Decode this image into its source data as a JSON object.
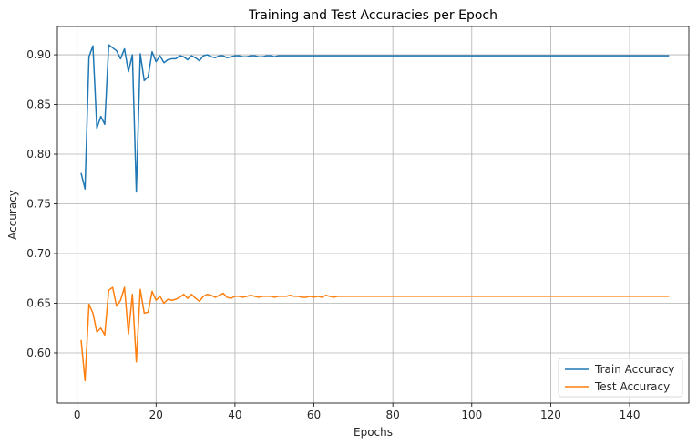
{
  "chart_data": {
    "type": "line",
    "title": "Training and Test Accuracies per Epoch",
    "xlabel": "Epochs",
    "ylabel": "Accuracy",
    "xlim": [
      -5,
      155
    ],
    "ylim": [
      0.5495,
      0.9285
    ],
    "xticks": [
      0,
      20,
      40,
      60,
      80,
      100,
      120,
      140
    ],
    "yticks": [
      0.6,
      0.65,
      0.7,
      0.75,
      0.8,
      0.85,
      0.9
    ],
    "grid": true,
    "legend_position": "lower-right",
    "x_start": 1,
    "x_end": 150,
    "series": [
      {
        "name": "Train Accuracy",
        "color": "#1f77b4",
        "head": [
          0.781,
          0.765,
          0.898,
          0.909,
          0.826,
          0.838,
          0.83,
          0.91,
          0.907,
          0.904,
          0.896,
          0.906,
          0.883,
          0.9,
          0.762,
          0.901,
          0.874,
          0.878,
          0.903,
          0.893,
          0.899,
          0.892,
          0.895,
          0.896,
          0.896,
          0.899,
          0.898,
          0.895,
          0.899,
          0.897,
          0.894,
          0.899,
          0.9,
          0.898,
          0.897,
          0.899,
          0.899,
          0.897,
          0.898,
          0.899,
          0.899,
          0.898,
          0.898,
          0.899,
          0.899,
          0.898,
          0.898,
          0.899,
          0.899,
          0.898
        ],
        "tail_value": 0.899
      },
      {
        "name": "Test Accuracy",
        "color": "#ff7f0e",
        "head": [
          0.613,
          0.572,
          0.649,
          0.64,
          0.621,
          0.625,
          0.618,
          0.663,
          0.666,
          0.647,
          0.653,
          0.666,
          0.619,
          0.659,
          0.591,
          0.664,
          0.64,
          0.641,
          0.662,
          0.653,
          0.657,
          0.65,
          0.654,
          0.653,
          0.654,
          0.656,
          0.659,
          0.655,
          0.659,
          0.655,
          0.652,
          0.657,
          0.659,
          0.658,
          0.656,
          0.658,
          0.66,
          0.656,
          0.655,
          0.657,
          0.657,
          0.656,
          0.657,
          0.658,
          0.657,
          0.656,
          0.657,
          0.657,
          0.657,
          0.656,
          0.657,
          0.657,
          0.657,
          0.658,
          0.657,
          0.657,
          0.656,
          0.656,
          0.657,
          0.656,
          0.657,
          0.656,
          0.658,
          0.657,
          0.656,
          0.657
        ],
        "tail_value": 0.657
      }
    ]
  }
}
